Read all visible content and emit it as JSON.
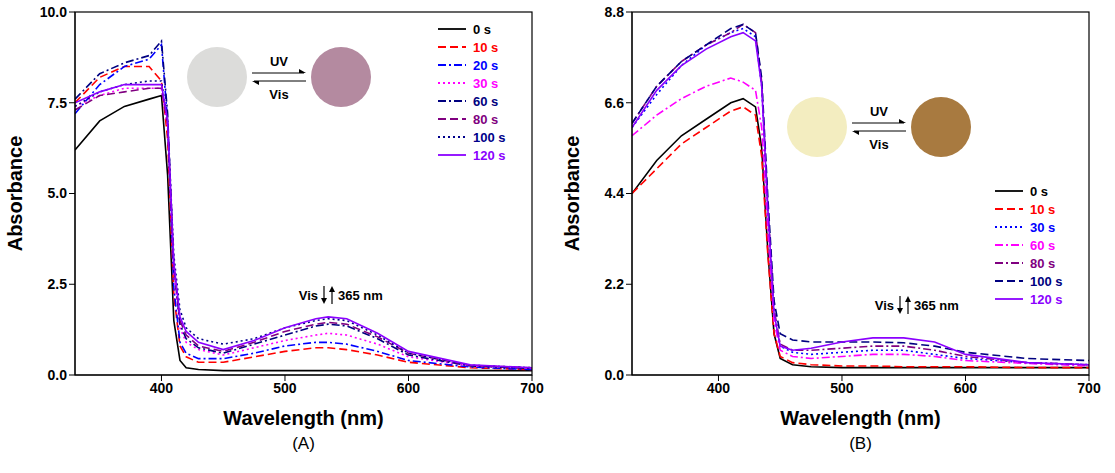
{
  "chart_data": [
    {
      "type": "line",
      "panel_label": "(A)",
      "x_label": "Wavelength (nm)",
      "y_label": "Absorbance",
      "annotations": [
        "Vis",
        "365 nm"
      ],
      "inset_labels": [
        "UV",
        "Vis"
      ],
      "xlim": [
        330,
        700
      ],
      "xticks": [
        400,
        500,
        600,
        700
      ],
      "ylim": [
        0,
        10
      ],
      "yticks": [
        {
          "value": 0,
          "label": "0.0"
        },
        2.5,
        {
          "value": 5,
          "label": "5.0"
        },
        7.5,
        {
          "value": 10,
          "label": "10.0"
        }
      ],
      "grid": false,
      "legend": "upper right",
      "x": [
        330,
        350,
        370,
        390,
        400,
        405,
        410,
        415,
        420,
        430,
        450,
        475,
        500,
        525,
        535,
        550,
        575,
        600,
        650,
        700
      ],
      "series": [
        {
          "name": "0 s",
          "color": "#000000",
          "line_style": "solid",
          "values": [
            6.2,
            7.0,
            7.4,
            7.6,
            7.7,
            5.5,
            1.5,
            0.4,
            0.2,
            0.15,
            0.12,
            0.12,
            0.12,
            0.12,
            0.12,
            0.12,
            0.12,
            0.12,
            0.12,
            0.12
          ]
        },
        {
          "name": "10 s",
          "color": "#ff0000",
          "line_style": "dashed",
          "values": [
            7.5,
            8.2,
            8.5,
            8.5,
            8.1,
            6.5,
            2.2,
            0.8,
            0.5,
            0.35,
            0.35,
            0.5,
            0.65,
            0.75,
            0.75,
            0.7,
            0.55,
            0.35,
            0.2,
            0.15
          ]
        },
        {
          "name": "20 s",
          "color": "#0000ff",
          "line_style": "dashdot",
          "values": [
            7.2,
            8.0,
            8.5,
            8.7,
            9.1,
            7.0,
            2.4,
            0.9,
            0.6,
            0.45,
            0.45,
            0.6,
            0.8,
            0.9,
            0.9,
            0.85,
            0.65,
            0.4,
            0.22,
            0.15
          ]
        },
        {
          "name": "30 s",
          "color": "#ff00ff",
          "line_style": "dotted",
          "values": [
            7.4,
            7.7,
            7.9,
            7.9,
            7.9,
            6.8,
            2.8,
            1.3,
            0.9,
            0.7,
            0.55,
            0.75,
            0.95,
            1.1,
            1.15,
            1.1,
            0.85,
            0.5,
            0.25,
            0.18
          ]
        },
        {
          "name": "60 s",
          "color": "#000080",
          "line_style": "dashdot",
          "values": [
            7.6,
            8.3,
            8.6,
            8.8,
            9.2,
            7.2,
            3.0,
            1.4,
            1.0,
            0.75,
            0.6,
            0.85,
            1.1,
            1.35,
            1.4,
            1.35,
            1.0,
            0.55,
            0.25,
            0.18
          ]
        },
        {
          "name": "80 s",
          "color": "#800080",
          "line_style": "dashed",
          "values": [
            7.3,
            7.7,
            7.8,
            7.9,
            7.9,
            6.9,
            3.0,
            1.5,
            1.1,
            0.8,
            0.65,
            0.9,
            1.2,
            1.4,
            1.45,
            1.4,
            1.05,
            0.6,
            0.26,
            0.2
          ]
        },
        {
          "name": "100 s",
          "color": "#00008b",
          "line_style": "dotted",
          "values": [
            7.4,
            7.8,
            8.0,
            8.1,
            8.1,
            7.0,
            3.3,
            1.8,
            1.3,
            1.0,
            0.85,
            1.0,
            1.3,
            1.5,
            1.55,
            1.5,
            1.1,
            0.6,
            0.27,
            0.2
          ]
        },
        {
          "name": "120 s",
          "color": "#8b00ff",
          "line_style": "solid",
          "values": [
            7.5,
            7.8,
            8.0,
            8.0,
            8.0,
            7.0,
            3.1,
            1.6,
            1.2,
            0.9,
            0.7,
            0.95,
            1.3,
            1.55,
            1.6,
            1.55,
            1.15,
            0.65,
            0.28,
            0.2
          ]
        }
      ]
    },
    {
      "type": "line",
      "panel_label": "(B)",
      "x_label": "Wavelength (nm)",
      "y_label": "Absorbance",
      "annotations": [
        "Vis",
        "365 nm"
      ],
      "inset_labels": [
        "UV",
        "Vis"
      ],
      "xlim": [
        330,
        700
      ],
      "xticks": [
        400,
        500,
        600,
        700
      ],
      "ylim": [
        0,
        8.8
      ],
      "yticks": [
        {
          "value": 0,
          "label": "0.0"
        },
        2.2,
        4.4,
        6.6,
        8.8
      ],
      "grid": false,
      "legend": "right",
      "x": [
        330,
        350,
        370,
        390,
        410,
        420,
        430,
        435,
        440,
        445,
        450,
        460,
        475,
        500,
        525,
        550,
        575,
        600,
        650,
        700
      ],
      "series": [
        {
          "name": "0 s",
          "color": "#000000",
          "line_style": "solid",
          "values": [
            4.4,
            5.2,
            5.8,
            6.2,
            6.6,
            6.7,
            6.5,
            5.5,
            3.0,
            1.0,
            0.4,
            0.25,
            0.2,
            0.18,
            0.18,
            0.18,
            0.18,
            0.18,
            0.18,
            0.18
          ]
        },
        {
          "name": "10 s",
          "color": "#ff0000",
          "line_style": "dashed",
          "values": [
            4.4,
            5.0,
            5.6,
            6.0,
            6.4,
            6.5,
            6.3,
            5.3,
            2.9,
            1.0,
            0.45,
            0.3,
            0.25,
            0.22,
            0.22,
            0.2,
            0.2,
            0.2,
            0.18,
            0.18
          ]
        },
        {
          "name": "30 s",
          "color": "#0000ff",
          "line_style": "dotted",
          "values": [
            6.0,
            6.8,
            7.5,
            8.0,
            8.3,
            8.4,
            8.2,
            7.0,
            4.0,
            1.5,
            0.7,
            0.55,
            0.5,
            0.55,
            0.6,
            0.6,
            0.5,
            0.4,
            0.3,
            0.25
          ]
        },
        {
          "name": "60 s",
          "color": "#ff00ff",
          "line_style": "dashdot",
          "values": [
            5.8,
            6.3,
            6.7,
            7.0,
            7.2,
            7.1,
            6.9,
            6.0,
            3.5,
            1.3,
            0.6,
            0.45,
            0.4,
            0.45,
            0.5,
            0.5,
            0.45,
            0.35,
            0.28,
            0.22
          ]
        },
        {
          "name": "80 s",
          "color": "#800080",
          "line_style": "dashdot",
          "values": [
            6.1,
            7.0,
            7.6,
            8.0,
            8.3,
            8.5,
            8.3,
            7.1,
            4.1,
            1.6,
            0.75,
            0.6,
            0.6,
            0.65,
            0.7,
            0.7,
            0.6,
            0.45,
            0.3,
            0.25
          ]
        },
        {
          "name": "100 s",
          "color": "#000080",
          "line_style": "dashed",
          "values": [
            6.1,
            7.0,
            7.6,
            8.0,
            8.4,
            8.5,
            8.3,
            7.2,
            4.3,
            1.8,
            1.0,
            0.85,
            0.8,
            0.8,
            0.8,
            0.78,
            0.7,
            0.55,
            0.4,
            0.35
          ]
        },
        {
          "name": "120 s",
          "color": "#8b00ff",
          "line_style": "solid",
          "values": [
            6.0,
            6.9,
            7.5,
            7.9,
            8.2,
            8.3,
            8.1,
            7.0,
            4.0,
            1.5,
            0.7,
            0.6,
            0.65,
            0.8,
            0.9,
            0.9,
            0.8,
            0.5,
            0.3,
            0.25
          ]
        }
      ]
    }
  ]
}
